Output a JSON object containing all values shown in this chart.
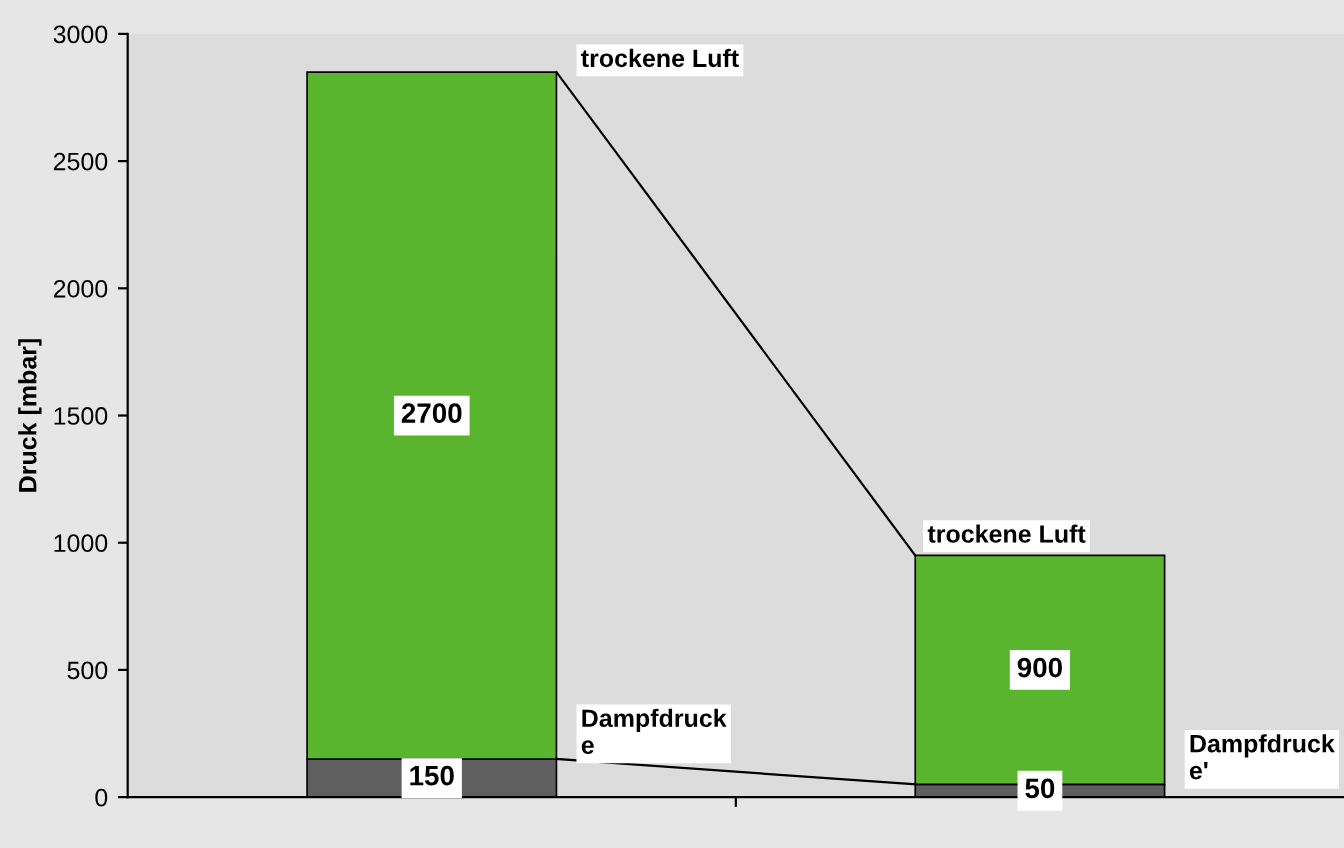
{
  "chart_data": {
    "type": "bar",
    "stacked": true,
    "ylabel": "Druck [mbar]",
    "categories": [
      null,
      null
    ],
    "series": [
      {
        "color": "#5f5f5f",
        "values": [
          150,
          50
        ]
      },
      {
        "color": "#5ab52e",
        "values": [
          2700,
          900
        ]
      }
    ],
    "data_labels": true,
    "ylim": [
      0,
      3000
    ],
    "yticks": [
      0,
      500,
      1000,
      1500,
      2000,
      2500,
      3000
    ],
    "grid": false,
    "legend": false,
    "annotations": [
      "trockene Luft",
      "trockene Luft",
      "Dampfdruck\ne",
      "Dampfdruck\ne'"
    ]
  }
}
